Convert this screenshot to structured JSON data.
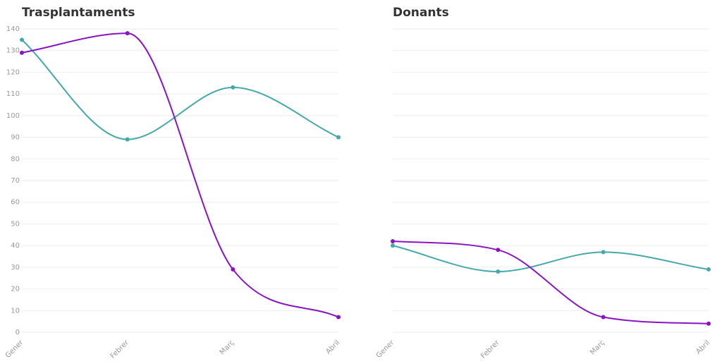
{
  "chart_data": [
    {
      "type": "line",
      "title": "Trasplantaments",
      "categories": [
        "Gener",
        "Febrer",
        "Març",
        "Abril"
      ],
      "series": [
        {
          "color": "#45a9a9",
          "values": [
            135,
            89,
            113,
            90
          ]
        },
        {
          "color": "#8a14c4",
          "values": [
            129,
            138,
            29,
            7
          ]
        }
      ],
      "ylim": [
        0,
        140
      ],
      "yticks": [
        0,
        10,
        20,
        30,
        40,
        50,
        60,
        70,
        80,
        90,
        100,
        110,
        120,
        130,
        140
      ],
      "grid": true,
      "ytick_labels": true
    },
    {
      "type": "line",
      "title": "Donants",
      "categories": [
        "Gener",
        "Febrer",
        "Març",
        "Abril"
      ],
      "series": [
        {
          "color": "#45a9a9",
          "values": [
            40,
            28,
            37,
            29
          ]
        },
        {
          "color": "#8a14c4",
          "values": [
            42,
            38,
            7,
            4
          ]
        }
      ],
      "ylim": [
        0,
        140
      ],
      "yticks": [
        0,
        10,
        20,
        30,
        40,
        50,
        60,
        70,
        80,
        90,
        100,
        110,
        120,
        130,
        140
      ],
      "grid": true,
      "ytick_labels": false
    }
  ]
}
